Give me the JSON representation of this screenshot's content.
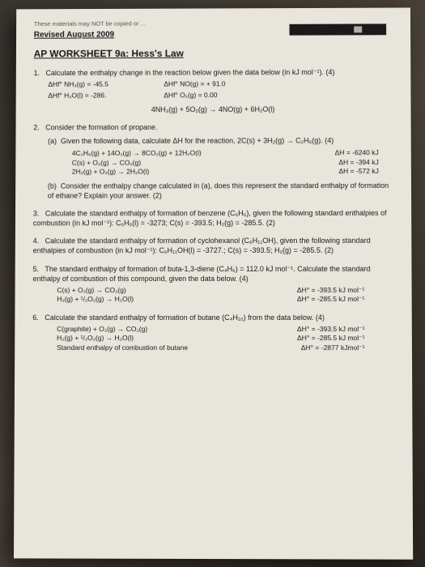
{
  "header": {
    "top_note": "These materials may NOT be copied or ...",
    "revised": "Revised August 2009",
    "title": "AP WORKSHEET 9a: Hess's Law"
  },
  "q1": {
    "prompt": "Calculate the enthalpy change in the reaction below given the data below (in kJ mol⁻¹). (4)",
    "d1a": "ΔHf° NH₃(g)  = -45.5",
    "d1b": "ΔHf° NO(g)   = + 91.0",
    "d2a": "ΔHf° H₂O(l)  = -286.",
    "d2b": "ΔHf° O₂(g)   = 0.00",
    "eq": "4NH₃(g) + 5O₂(g) → 4NO(g) + 6H₂O(l)"
  },
  "q2": {
    "prompt": "Consider the formation of propane.",
    "a_prompt": "Given the following data, calculate ΔH for the reaction, 2C(s) + 3H₂(g) → C₂H₆(g). (4)",
    "r1l": "4C₂H₆(g) + 14O₂(g) → 8CO₂(g) + 12H₂O(l)",
    "r1r": "ΔH = -6240 kJ",
    "r2l": "C(s) + O₂(g) → CO₂(g)",
    "r2r": "ΔH = -394 kJ",
    "r3l": "2H₂(g) + O₂(g) → 2H₂O(l)",
    "r3r": "ΔH = -572 kJ",
    "b_prompt": "Consider the enthalpy change calculated in (a), does this represent the standard enthalpy of formation of ethane? Explain your answer. (2)"
  },
  "q3": {
    "prompt": "Calculate the standard enthalpy of formation of benzene (C₆H₆), given the following standard enthalpies of combustion (in kJ mol⁻¹): C₆H₆(l) = -3273; C(s) = -393.5; H₂(g) = -285.5. (2)"
  },
  "q4": {
    "prompt": "Calculate the standard enthalpy of formation of cyclohexanol (C₆H₁₁OH), given the following standard enthalpies of combustion (in kJ mol⁻¹): C₆H₁₁OH(l) = -3727.; C(s) = -393.5; H₂(g) = -285.5. (2)"
  },
  "q5": {
    "prompt": "The standard enthalpy of formation of buta-1,3-diene (C₄H₆) = 112.0 kJ mol⁻¹. Calculate the standard enthalpy of combustion of this compound, given the data below. (4)",
    "r1l": "C(s) + O₂(g) → CO₂(g)",
    "r1r": "ΔH° = -393.5 kJ mol⁻¹",
    "r2l": "H₂(g) + ¹/₂O₂(g) → H₂O(l)",
    "r2r": "ΔH° = -285.5 kJ mol⁻¹"
  },
  "q6": {
    "prompt": "Calculate the standard enthalpy of formation of butane (C₄H₁₀) from the data below. (4)",
    "r1l": "C(graphite) + O₂(g) → CO₂(g)",
    "r1r": "ΔH° = -393.5 kJ mol⁻¹",
    "r2l": "H₂(g) + ¹/₂O₂(g) → H₂O(l)",
    "r2r": "ΔH° = -285.5 kJ mol⁻¹",
    "r3l": "Standard enthalpy of combustion of butane",
    "r3r": "ΔH° = -2877 kJmol⁻¹"
  }
}
